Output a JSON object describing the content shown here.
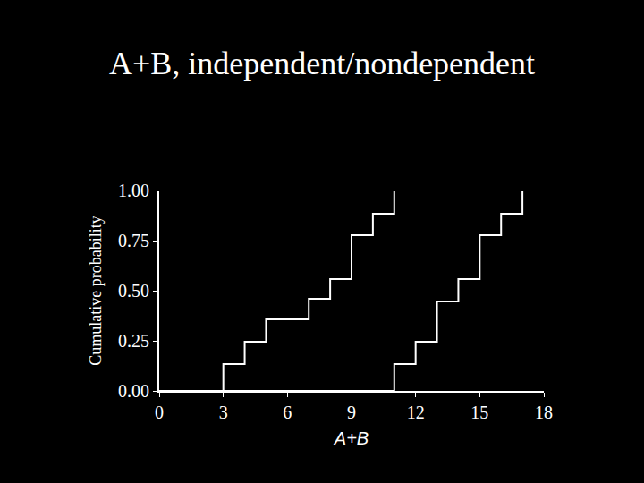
{
  "chart_data": {
    "type": "line",
    "line_style": "step",
    "title": "A+B, independent/nondependent",
    "x_label": "A+B",
    "y_label": "Cumulative probability",
    "series": [
      {
        "color": "#ffffff",
        "x": [
          0,
          3,
          4,
          5,
          7,
          8,
          9,
          10,
          11,
          18
        ],
        "values": [
          0,
          0.134,
          0.245,
          0.357,
          0.46,
          0.558,
          0.777,
          0.884,
          1.0,
          1.0
        ]
      },
      {
        "color": "#ffffff",
        "x": [
          0,
          11,
          12,
          13,
          14,
          15,
          16,
          17
        ],
        "values": [
          0,
          0.134,
          0.245,
          0.446,
          0.558,
          0.777,
          0.884,
          1.0
        ]
      }
    ],
    "xlim": [
      0,
      18
    ],
    "xticks": [
      0,
      3,
      6,
      9,
      12,
      15,
      18
    ],
    "ylim": [
      0,
      1
    ],
    "yticks": [
      {
        "value": 0,
        "label": "0.00"
      },
      {
        "value": 0.25,
        "label": "0.25"
      },
      {
        "value": 0.5,
        "label": "0.50"
      },
      {
        "value": 0.75,
        "label": "0.75"
      },
      {
        "value": 1,
        "label": "1.00"
      }
    ],
    "grid": false
  }
}
